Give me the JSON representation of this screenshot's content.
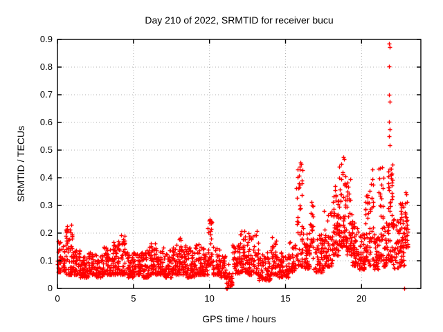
{
  "chart": {
    "title": "Day 210 of 2022, SRMTID for receiver bucu",
    "xlabel": "GPS time / hours",
    "ylabel": "SRMTID / TECUs"
  },
  "colors": {
    "marker": "#ff0000",
    "border": "#000000",
    "grid": "#b0b0b0",
    "background": "#ffffff",
    "text": "#000000"
  },
  "chart_data": {
    "type": "scatter",
    "title": "Day 210 of 2022, SRMTID for receiver bucu",
    "xlabel": "GPS time / hours",
    "ylabel": "SRMTID / TECUs",
    "series_name": "SRMTID",
    "xlim": [
      0,
      23.9
    ],
    "ylim": [
      0,
      0.9
    ],
    "xticks": [
      [
        0,
        "0"
      ],
      [
        5,
        "5"
      ],
      [
        10,
        "10"
      ],
      [
        15,
        "15"
      ],
      [
        20,
        "20"
      ]
    ],
    "yticks": [
      [
        0,
        "0"
      ],
      [
        0.1,
        "0.1"
      ],
      [
        0.2,
        "0.2"
      ],
      [
        0.3,
        "0.3"
      ],
      [
        0.4,
        "0.4"
      ],
      [
        0.5,
        "0.5"
      ],
      [
        0.6,
        "0.6"
      ],
      [
        0.7,
        "0.7"
      ],
      [
        0.8,
        "0.8"
      ],
      [
        0.9,
        "0.9"
      ]
    ],
    "grid": "dotted",
    "legend": "none",
    "marker": {
      "shape": "plus",
      "color": "#ff0000",
      "size": 7
    },
    "band_bins": [
      [
        0.0,
        0.5,
        0.06,
        0.17,
        55
      ],
      [
        0.5,
        1.0,
        0.05,
        0.23,
        60
      ],
      [
        1.0,
        1.5,
        0.05,
        0.14,
        52
      ],
      [
        1.5,
        2.0,
        0.04,
        0.12,
        50
      ],
      [
        2.0,
        2.5,
        0.05,
        0.13,
        50
      ],
      [
        2.5,
        3.0,
        0.04,
        0.12,
        50
      ],
      [
        3.0,
        3.5,
        0.05,
        0.15,
        50
      ],
      [
        3.5,
        4.0,
        0.05,
        0.17,
        52
      ],
      [
        4.0,
        4.5,
        0.05,
        0.19,
        55
      ],
      [
        4.5,
        5.0,
        0.04,
        0.13,
        50
      ],
      [
        5.0,
        5.5,
        0.05,
        0.13,
        50
      ],
      [
        5.5,
        6.0,
        0.04,
        0.14,
        50
      ],
      [
        6.0,
        6.5,
        0.05,
        0.17,
        52
      ],
      [
        6.5,
        7.0,
        0.05,
        0.15,
        50
      ],
      [
        7.0,
        7.5,
        0.04,
        0.14,
        48
      ],
      [
        7.5,
        8.0,
        0.05,
        0.16,
        50
      ],
      [
        8.0,
        8.5,
        0.05,
        0.185,
        54
      ],
      [
        8.5,
        9.0,
        0.04,
        0.15,
        50
      ],
      [
        9.0,
        9.5,
        0.05,
        0.16,
        50
      ],
      [
        9.5,
        9.9,
        0.05,
        0.15,
        40
      ],
      [
        9.9,
        10.15,
        0.08,
        0.255,
        28
      ],
      [
        10.15,
        10.7,
        0.05,
        0.15,
        50
      ],
      [
        10.7,
        11.1,
        0.04,
        0.12,
        40
      ],
      [
        11.1,
        11.5,
        0.01,
        0.09,
        22
      ],
      [
        11.5,
        12.0,
        0.05,
        0.16,
        50
      ],
      [
        12.0,
        12.5,
        0.06,
        0.21,
        52
      ],
      [
        12.5,
        13.2,
        0.05,
        0.21,
        65
      ],
      [
        13.2,
        14.0,
        0.03,
        0.13,
        70
      ],
      [
        14.0,
        14.5,
        0.05,
        0.19,
        52
      ],
      [
        14.5,
        15.2,
        0.04,
        0.13,
        62
      ],
      [
        15.2,
        15.7,
        0.06,
        0.17,
        48
      ],
      [
        15.7,
        16.15,
        0.08,
        0.46,
        52
      ],
      [
        16.15,
        16.6,
        0.07,
        0.2,
        45
      ],
      [
        16.6,
        16.8,
        0.15,
        0.33,
        20
      ],
      [
        16.8,
        17.5,
        0.06,
        0.2,
        62
      ],
      [
        17.5,
        18.1,
        0.08,
        0.28,
        60
      ],
      [
        18.1,
        18.5,
        0.12,
        0.38,
        55
      ],
      [
        18.5,
        19.0,
        0.15,
        0.47,
        70
      ],
      [
        19.0,
        19.35,
        0.12,
        0.4,
        45
      ],
      [
        19.35,
        19.8,
        0.08,
        0.25,
        50
      ],
      [
        19.8,
        20.2,
        0.07,
        0.2,
        45
      ],
      [
        20.2,
        20.45,
        0.1,
        0.35,
        30
      ],
      [
        20.45,
        20.8,
        0.08,
        0.43,
        40
      ],
      [
        20.8,
        21.1,
        0.07,
        0.2,
        35
      ],
      [
        21.1,
        21.45,
        0.1,
        0.44,
        40
      ],
      [
        21.45,
        21.7,
        0.08,
        0.25,
        30
      ],
      [
        21.7,
        22.05,
        0.1,
        0.49,
        55
      ],
      [
        22.05,
        22.5,
        0.07,
        0.25,
        45
      ],
      [
        22.5,
        22.85,
        0.08,
        0.31,
        48
      ],
      [
        22.85,
        23.05,
        0.15,
        0.38,
        26
      ]
    ],
    "outliers": [
      [
        21.8,
        0.885
      ],
      [
        21.84,
        0.873
      ],
      [
        21.81,
        0.802
      ],
      [
        21.8,
        0.7
      ],
      [
        21.83,
        0.676
      ],
      [
        21.81,
        0.603
      ],
      [
        21.84,
        0.576
      ],
      [
        21.82,
        0.551
      ],
      [
        21.83,
        0.518
      ],
      [
        11.13,
        0.0
      ],
      [
        11.15,
        0.0
      ],
      [
        11.17,
        0.0
      ],
      [
        11.14,
        0.005
      ],
      [
        11.16,
        0.005
      ],
      [
        11.32,
        0.025
      ],
      [
        11.35,
        0.04
      ],
      [
        11.3,
        0.055
      ],
      [
        22.82,
        0.0
      ],
      [
        0.58,
        0.21
      ],
      [
        0.62,
        0.225
      ],
      [
        0.66,
        0.215
      ],
      [
        9.98,
        0.245
      ],
      [
        10.02,
        0.25
      ],
      [
        4.2,
        0.192
      ],
      [
        15.95,
        0.44
      ],
      [
        16.0,
        0.455
      ],
      [
        18.78,
        0.475
      ],
      [
        18.85,
        0.468
      ],
      [
        20.7,
        0.43
      ],
      [
        21.2,
        0.435
      ]
    ]
  }
}
